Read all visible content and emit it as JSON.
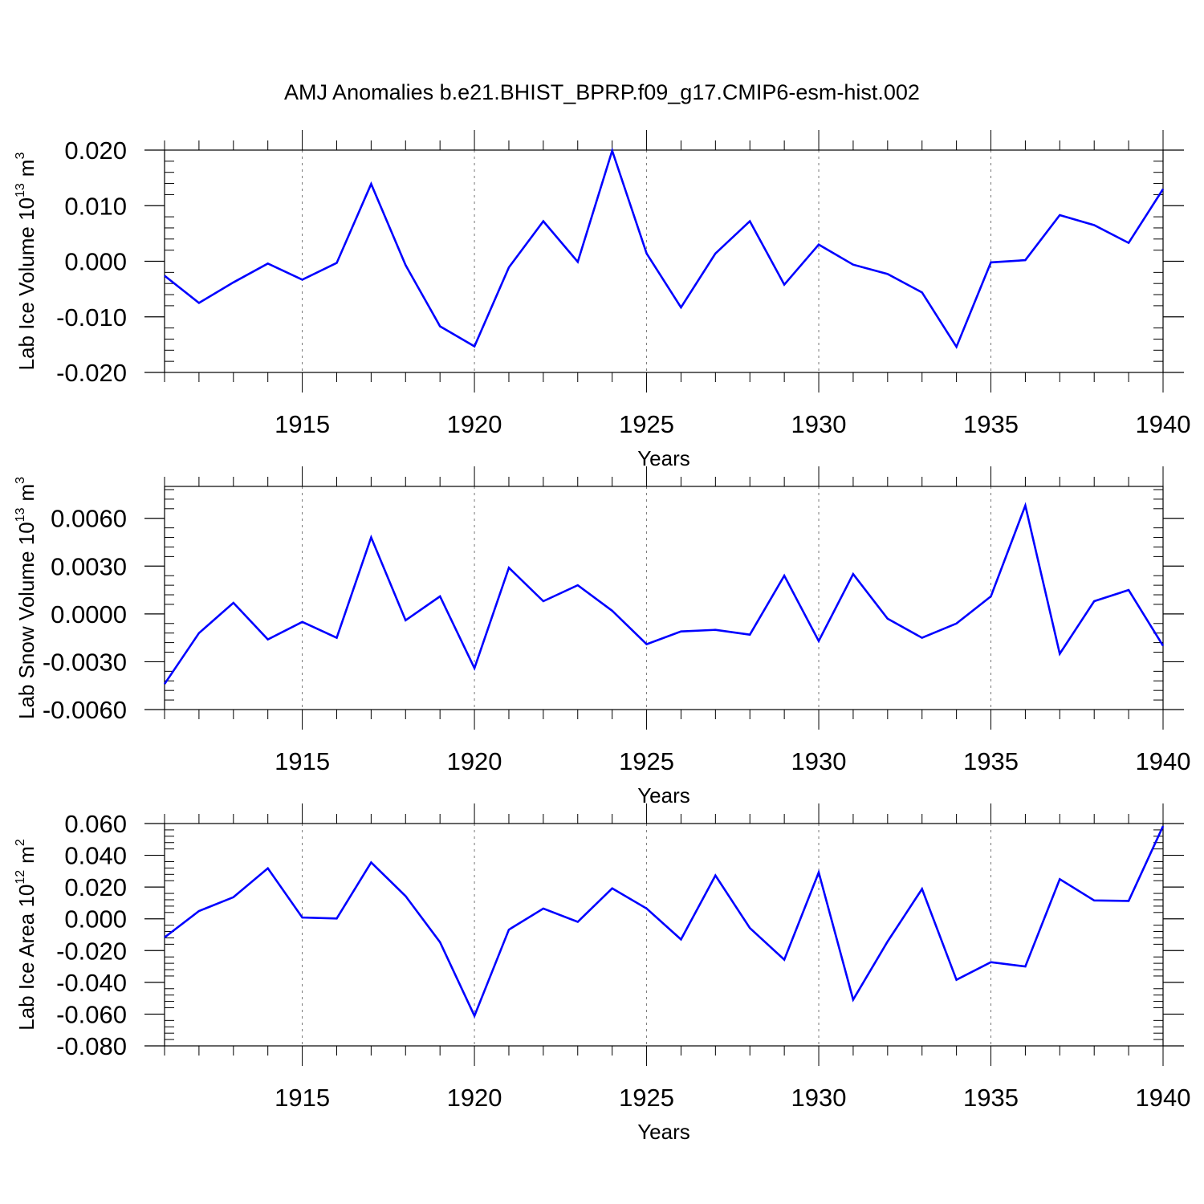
{
  "title": "AMJ Anomalies b.e21.BHIST_BPRP.f09_g17.CMIP6-esm-hist.002",
  "line_color": "#0000ff",
  "chart_data": [
    {
      "type": "line",
      "ylabel_main": "Lab Ice Volume 10",
      "ylabel_exp": "13",
      "ylabel_unit": "m",
      "ylabel_unit_exp": "3",
      "xlabel": "Years",
      "xlim": [
        1911,
        1940
      ],
      "ylim": [
        -0.02,
        0.02
      ],
      "ymajor": [
        -0.02,
        -0.01,
        0.0,
        0.01,
        0.02
      ],
      "yticklabels": [
        "-0.020",
        "-0.010",
        "0.000",
        "0.010",
        "0.020"
      ],
      "yminor_step": 0.002,
      "xtick_values": [
        1915,
        1920,
        1925,
        1930,
        1935,
        1940
      ],
      "xticklabels": [
        "1915",
        "1920",
        "1925",
        "1930",
        "1935",
        "1940"
      ],
      "x": [
        1911,
        1912,
        1913,
        1914,
        1915,
        1916,
        1917,
        1918,
        1919,
        1920,
        1921,
        1922,
        1923,
        1924,
        1925,
        1926,
        1927,
        1928,
        1929,
        1930,
        1931,
        1932,
        1933,
        1934,
        1935,
        1936,
        1937,
        1938,
        1939,
        1940
      ],
      "values": [
        -0.0026,
        -0.0075,
        -0.0038,
        -0.0004,
        -0.0033,
        -0.0003,
        0.0139,
        -0.0007,
        -0.0117,
        -0.0153,
        -0.0011,
        0.0072,
        -0.0001,
        0.0199,
        0.0014,
        -0.0083,
        0.0014,
        0.0072,
        -0.0042,
        0.003,
        -0.0006,
        -0.0023,
        -0.0056,
        -0.0154,
        -0.0002,
        0.0002,
        0.0083,
        0.0065,
        0.0033,
        0.013
      ]
    },
    {
      "type": "line",
      "ylabel_main": "Lab Snow Volume 10",
      "ylabel_exp": "13",
      "ylabel_unit": "m",
      "ylabel_unit_exp": "3",
      "xlabel": "Years",
      "xlim": [
        1911,
        1940
      ],
      "ylim": [
        -0.006,
        0.008
      ],
      "ymajor": [
        -0.006,
        -0.003,
        0.0,
        0.003,
        0.006
      ],
      "yticklabels": [
        "-0.0060",
        "-0.0030",
        "0.0000",
        "0.0030",
        "0.0060"
      ],
      "yminor_step": 0.0006,
      "xtick_values": [
        1915,
        1920,
        1925,
        1930,
        1935,
        1940
      ],
      "xticklabels": [
        "1915",
        "1920",
        "1925",
        "1930",
        "1935",
        "1940"
      ],
      "x": [
        1911,
        1912,
        1913,
        1914,
        1915,
        1916,
        1917,
        1918,
        1919,
        1920,
        1921,
        1922,
        1923,
        1924,
        1925,
        1926,
        1927,
        1928,
        1929,
        1930,
        1931,
        1932,
        1933,
        1934,
        1935,
        1936,
        1937,
        1938,
        1939,
        1940
      ],
      "values": [
        -0.0044,
        -0.0012,
        0.0007,
        -0.0016,
        -0.0005,
        -0.0015,
        0.0048,
        -0.0004,
        0.0011,
        -0.0034,
        0.0029,
        0.0008,
        0.0018,
        0.0002,
        -0.0019,
        -0.0011,
        -0.001,
        -0.0013,
        0.0024,
        -0.0017,
        0.0025,
        -0.0003,
        -0.0015,
        -0.0006,
        0.0011,
        0.0068,
        -0.0025,
        0.0008,
        0.0015,
        -0.002
      ]
    },
    {
      "type": "line",
      "ylabel_main": "Lab Ice Area 10",
      "ylabel_exp": "12",
      "ylabel_unit": "m",
      "ylabel_unit_exp": "2",
      "xlabel": "Years",
      "xlim": [
        1911,
        1940
      ],
      "ylim": [
        -0.08,
        0.06
      ],
      "ymajor": [
        -0.08,
        -0.06,
        -0.04,
        -0.02,
        0.0,
        0.02,
        0.04,
        0.06
      ],
      "yticklabels": [
        "-0.080",
        "-0.060",
        "-0.040",
        "-0.020",
        "0.000",
        "0.020",
        "0.040",
        "0.060"
      ],
      "yminor_step": 0.004,
      "xtick_values": [
        1915,
        1920,
        1925,
        1930,
        1935,
        1940
      ],
      "xticklabels": [
        "1915",
        "1920",
        "1925",
        "1930",
        "1935",
        "1940"
      ],
      "x": [
        1911,
        1912,
        1913,
        1914,
        1915,
        1916,
        1917,
        1918,
        1919,
        1920,
        1921,
        1922,
        1923,
        1924,
        1925,
        1926,
        1927,
        1928,
        1929,
        1930,
        1931,
        1932,
        1933,
        1934,
        1935,
        1936,
        1937,
        1938,
        1939,
        1940
      ],
      "values": [
        -0.0117,
        0.0049,
        0.0136,
        0.0318,
        0.0008,
        0.0002,
        0.0355,
        0.0143,
        -0.0147,
        -0.0611,
        -0.0068,
        0.0065,
        -0.0019,
        0.0192,
        0.0065,
        -0.013,
        0.0273,
        -0.0058,
        -0.0257,
        0.0292,
        -0.0509,
        -0.0143,
        0.0188,
        -0.0384,
        -0.0273,
        -0.03,
        0.025,
        0.0116,
        0.0113,
        0.0584
      ]
    }
  ]
}
